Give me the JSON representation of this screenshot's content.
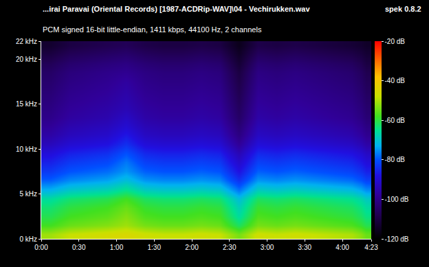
{
  "chart_data": {
    "type": "heatmap",
    "title": "...irai Paravai (Oriental Records) [1987-ACDRip-WAV]\\04 - Vechirukken.wav",
    "subtitle": "PCM signed 16-bit little-endian, 1411 kbps, 44100 Hz, 2 channels",
    "annotations": [
      "spek 0.8.2"
    ],
    "x": [
      0,
      15,
      30,
      45,
      60,
      75,
      90,
      105,
      120,
      135,
      150,
      165,
      180,
      195,
      210,
      225,
      240,
      255,
      263
    ],
    "y": [
      0,
      1,
      2,
      3,
      4,
      5,
      6,
      7,
      8,
      9,
      10,
      11,
      12,
      13,
      14,
      15,
      16,
      17,
      18,
      19,
      20,
      21,
      22
    ],
    "xlim": [
      0,
      263
    ],
    "xticks": [
      {
        "value": 0,
        "label": "0:00"
      },
      {
        "value": 30,
        "label": "0:30"
      },
      {
        "value": 60,
        "label": "1:00"
      },
      {
        "value": 90,
        "label": "1:30"
      },
      {
        "value": 120,
        "label": "2:00"
      },
      {
        "value": 150,
        "label": "2:30"
      },
      {
        "value": 180,
        "label": "3:00"
      },
      {
        "value": 210,
        "label": "3:30"
      },
      {
        "value": 240,
        "label": "4:00"
      },
      {
        "value": 263,
        "label": "4:23"
      }
    ],
    "ylim": [
      0,
      22
    ],
    "yticks": [
      {
        "value": 0,
        "label": "0 kHz"
      },
      {
        "value": 5,
        "label": "5 kHz"
      },
      {
        "value": 10,
        "label": "10 kHz"
      },
      {
        "value": 15,
        "label": "15 kHz"
      },
      {
        "value": 20,
        "label": "20 kHz"
      },
      {
        "value": 22,
        "label": "22 kHz"
      }
    ],
    "z": [
      [
        -51,
        -48,
        -47,
        -46,
        -45,
        -47,
        -48,
        -48,
        -47,
        -48,
        -54,
        -47,
        -48,
        -47,
        -48,
        -49,
        -50,
        -55
      ],
      [
        -58,
        -55,
        -54,
        -53,
        -51,
        -54,
        -55,
        -55,
        -54,
        -55,
        -62,
        -54,
        -55,
        -54,
        -55,
        -56,
        -57,
        -61
      ],
      [
        -61,
        -58,
        -57,
        -56,
        -53,
        -57,
        -58,
        -58,
        -57,
        -58,
        -66,
        -57,
        -58,
        -57,
        -58,
        -59,
        -60,
        -64
      ],
      [
        -63,
        -60,
        -59,
        -58,
        -55,
        -59,
        -60,
        -60,
        -59,
        -60,
        -68,
        -59,
        -60,
        -59,
        -60,
        -61,
        -62,
        -66
      ],
      [
        -66,
        -63,
        -62,
        -61,
        -58,
        -62,
        -63,
        -63,
        -62,
        -63,
        -71,
        -62,
        -63,
        -62,
        -63,
        -64,
        -65,
        -69
      ],
      [
        -73,
        -70,
        -69,
        -68,
        -65,
        -69,
        -70,
        -70,
        -69,
        -70,
        -78,
        -69,
        -70,
        -69,
        -70,
        -71,
        -72,
        -76
      ],
      [
        -79,
        -76,
        -75,
        -74,
        -71,
        -75,
        -76,
        -76,
        -75,
        -76,
        -84,
        -75,
        -76,
        -75,
        -76,
        -77,
        -78,
        -82
      ],
      [
        -83,
        -80,
        -79,
        -78,
        -75,
        -79,
        -80,
        -80,
        -79,
        -80,
        -88,
        -79,
        -80,
        -79,
        -80,
        -81,
        -82,
        -86
      ],
      [
        -86,
        -83,
        -82,
        -81,
        -77,
        -82,
        -83,
        -83,
        -82,
        -83,
        -91,
        -82,
        -83,
        -82,
        -83,
        -84,
        -85,
        -89
      ],
      [
        -89,
        -86,
        -85,
        -84,
        -80,
        -85,
        -86,
        -86,
        -85,
        -86,
        -94,
        -85,
        -86,
        -85,
        -86,
        -87,
        -88,
        -92
      ],
      [
        -93,
        -90,
        -89,
        -88,
        -84,
        -89,
        -90,
        -90,
        -89,
        -90,
        -98,
        -89,
        -90,
        -89,
        -90,
        -91,
        -92,
        -96
      ],
      [
        -96,
        -93,
        -92,
        -91,
        -87,
        -92,
        -93,
        -93,
        -92,
        -93,
        -101,
        -92,
        -93,
        -92,
        -93,
        -94,
        -95,
        -99
      ],
      [
        -98,
        -95,
        -94,
        -93,
        -90,
        -94,
        -95,
        -95,
        -94,
        -95,
        -103,
        -94,
        -95,
        -94,
        -95,
        -96,
        -97,
        -101
      ],
      [
        -100,
        -97,
        -96,
        -95,
        -92,
        -96,
        -97,
        -97,
        -96,
        -97,
        -105,
        -96,
        -97,
        -96,
        -97,
        -98,
        -99,
        -103
      ],
      [
        -101,
        -98,
        -97,
        -96,
        -94,
        -97,
        -98,
        -98,
        -97,
        -98,
        -106,
        -97,
        -98,
        -97,
        -98,
        -99,
        -100,
        -104
      ],
      [
        -102,
        -99,
        -98,
        -97,
        -95,
        -98,
        -99,
        -99,
        -98,
        -99,
        -107,
        -98,
        -99,
        -98,
        -99,
        -100,
        -101,
        -105
      ],
      [
        -103,
        -100,
        -99,
        -98,
        -96,
        -99,
        -100,
        -100,
        -99,
        -100,
        -108,
        -99,
        -100,
        -99,
        -100,
        -101,
        -102,
        -106
      ],
      [
        -104,
        -101,
        -100,
        -99,
        -97,
        -100,
        -101,
        -101,
        -100,
        -101,
        -109,
        -100,
        -101,
        -100,
        -101,
        -102,
        -103,
        -107
      ],
      [
        -105,
        -102,
        -101,
        -100,
        -99,
        -101,
        -102,
        -102,
        -101,
        -102,
        -110,
        -101,
        -102,
        -101,
        -102,
        -103,
        -104,
        -108
      ],
      [
        -107,
        -104,
        -103,
        -102,
        -101,
        -103,
        -104,
        -104,
        -103,
        -104,
        -112,
        -103,
        -104,
        -103,
        -104,
        -105,
        -106,
        -110
      ],
      [
        -110,
        -107,
        -106,
        -105,
        -104,
        -106,
        -107,
        -107,
        -106,
        -107,
        -114,
        -106,
        -107,
        -106,
        -107,
        -108,
        -109,
        -112
      ],
      [
        -113,
        -110,
        -109,
        -108,
        -107,
        -109,
        -110,
        -110,
        -109,
        -110,
        -116,
        -109,
        -110,
        -109,
        -110,
        -111,
        -112,
        -114
      ]
    ],
    "colorbar": {
      "range": [
        -120,
        -20
      ],
      "ticks": [
        {
          "value": -20,
          "label": "-20 dB"
        },
        {
          "value": -40,
          "label": "-40 dB"
        },
        {
          "value": -60,
          "label": "-60 dB"
        },
        {
          "value": -80,
          "label": "-80 dB"
        },
        {
          "value": -100,
          "label": "-100 dB"
        },
        {
          "value": -120,
          "label": "-120 dB"
        }
      ]
    }
  }
}
